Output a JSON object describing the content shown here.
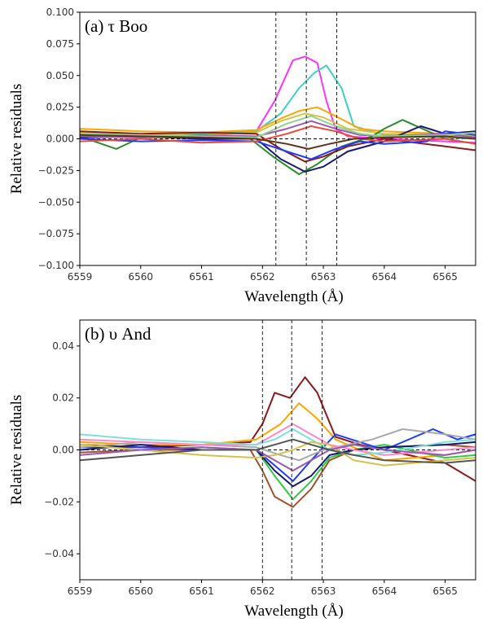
{
  "chart_data": [
    {
      "type": "line",
      "title": "(a) τ Boo",
      "xlabel": "Wavelength (Å)",
      "ylabel": "Relative residuals",
      "xlim": [
        6559,
        6565.5
      ],
      "ylim": [
        -0.1,
        0.1
      ],
      "xticks": [
        6559,
        6560,
        6561,
        6562,
        6563,
        6564,
        6565
      ],
      "xtick_labels": [
        "6559",
        "6560",
        "6561",
        "6562",
        "6563",
        "6564",
        "6565"
      ],
      "yticks": [
        0.1,
        0.075,
        0.05,
        0.025,
        0.0,
        -0.025,
        -0.05,
        -0.075,
        -0.1
      ],
      "ytick_labels": [
        "0.100",
        "0.075",
        "0.050",
        "0.025",
        "0.000",
        "−0.025",
        "−0.050",
        "−0.075",
        "−0.100"
      ],
      "vlines": [
        6562.22,
        6562.72,
        6563.22
      ],
      "hline": 0.0,
      "grid": false,
      "series": [
        {
          "color": "#ff33ff",
          "x": [
            6559,
            6560,
            6561,
            6561.9,
            6562.2,
            6562.5,
            6562.7,
            6562.9,
            6563.05,
            6563.2,
            6563.4,
            6564,
            6565,
            6565.5
          ],
          "y": [
            0.004,
            0.002,
            0.003,
            0.006,
            0.03,
            0.062,
            0.065,
            0.06,
            0.03,
            0.008,
            0.002,
            0.0,
            -0.002,
            -0.003
          ]
        },
        {
          "color": "#40d0c0",
          "x": [
            6559,
            6560,
            6561,
            6561.9,
            6562.3,
            6562.6,
            6562.85,
            6563.05,
            6563.3,
            6563.5,
            6564,
            6565,
            6565.5
          ],
          "y": [
            0.003,
            0.002,
            0.004,
            0.006,
            0.02,
            0.04,
            0.052,
            0.058,
            0.04,
            0.01,
            0.003,
            0.001,
            0.0
          ]
        },
        {
          "color": "#ffa500",
          "x": [
            6559,
            6560,
            6561,
            6561.9,
            6562.3,
            6562.6,
            6562.9,
            6563.2,
            6563.6,
            6564,
            6565,
            6565.5
          ],
          "y": [
            0.008,
            0.006,
            0.005,
            0.007,
            0.016,
            0.022,
            0.025,
            0.018,
            0.008,
            0.006,
            0.004,
            0.002
          ]
        },
        {
          "color": "#d4c24a",
          "x": [
            6559,
            6560,
            6561,
            6561.9,
            6562.3,
            6562.7,
            6563.0,
            6563.4,
            6564,
            6565,
            6565.5
          ],
          "y": [
            0.005,
            0.004,
            0.003,
            0.005,
            0.014,
            0.02,
            0.017,
            0.008,
            0.004,
            0.003,
            0.002
          ]
        },
        {
          "color": "#2e8b2e",
          "x": [
            6559,
            6559.6,
            6560,
            6561,
            6561.8,
            6562.2,
            6562.6,
            6562.9,
            6563.3,
            6563.8,
            6564,
            6564.3,
            6565,
            6565.5
          ],
          "y": [
            0.002,
            -0.008,
            0.001,
            0.002,
            0.0,
            -0.015,
            -0.028,
            -0.02,
            -0.006,
            0.002,
            0.008,
            0.015,
            0.0,
            -0.004
          ]
        },
        {
          "color": "#191970",
          "x": [
            6559,
            6560,
            6561,
            6561.9,
            6562.3,
            6562.7,
            6563.0,
            6563.4,
            6564,
            6564.6,
            6565,
            6565.5
          ],
          "y": [
            0.001,
            0.002,
            0.0,
            0.0,
            -0.016,
            -0.026,
            -0.022,
            -0.01,
            -0.002,
            0.01,
            0.004,
            0.006
          ]
        },
        {
          "color": "#8b1a1a",
          "x": [
            6559,
            6560,
            6561,
            6561.9,
            6562.3,
            6562.7,
            6563.0,
            6563.4,
            6564,
            6565,
            6565.5
          ],
          "y": [
            0.006,
            0.004,
            0.005,
            0.004,
            -0.008,
            -0.018,
            -0.014,
            -0.006,
            0.0,
            -0.006,
            -0.009
          ]
        },
        {
          "color": "#1e3cff",
          "x": [
            6559,
            6560,
            6561,
            6561.9,
            6562.4,
            6562.8,
            6563.2,
            6563.6,
            6564,
            6564.7,
            6565,
            6565.5
          ],
          "y": [
            0.0,
            -0.002,
            -0.001,
            -0.002,
            -0.01,
            -0.016,
            -0.008,
            -0.002,
            -0.004,
            -0.002,
            0.006,
            0.003
          ]
        },
        {
          "color": "#9b59b6",
          "x": [
            6559,
            6560,
            6561,
            6561.9,
            6562.4,
            6562.8,
            6563.2,
            6563.6,
            6564,
            6565,
            6565.5
          ],
          "y": [
            0.002,
            0.001,
            0.003,
            0.002,
            0.008,
            0.014,
            0.008,
            0.003,
            0.002,
            0.004,
            0.001
          ]
        },
        {
          "color": "#e74c3c",
          "x": [
            6559,
            6560,
            6561,
            6561.9,
            6562.4,
            6562.8,
            6563.2,
            6563.6,
            6564,
            6565,
            6565.5
          ],
          "y": [
            -0.002,
            0.0,
            -0.003,
            -0.002,
            0.004,
            0.01,
            0.006,
            0.0,
            -0.002,
            0.0,
            -0.004
          ]
        },
        {
          "color": "#8fd18f",
          "x": [
            6559,
            6560,
            6561,
            6561.9,
            6562.4,
            6562.8,
            6563.2,
            6563.6,
            6564,
            6565,
            6565.5
          ],
          "y": [
            0.004,
            0.003,
            0.002,
            0.001,
            0.012,
            0.018,
            0.01,
            0.004,
            0.002,
            0.003,
            0.005
          ]
        },
        {
          "color": "#5c3317",
          "x": [
            6559,
            6560,
            6561,
            6561.9,
            6562.4,
            6562.75,
            6563.1,
            6563.5,
            6564,
            6565,
            6565.5
          ],
          "y": [
            0.003,
            0.002,
            0.001,
            0.0,
            -0.004,
            -0.008,
            -0.004,
            0.0,
            0.001,
            0.002,
            0.0
          ]
        }
      ]
    },
    {
      "type": "line",
      "title": "(b) υ And",
      "xlabel": "Wavelength (Å)",
      "ylabel": "Relative residuals",
      "xlim": [
        6559,
        6565.5
      ],
      "ylim": [
        -0.05,
        0.05
      ],
      "xticks": [
        6559,
        6560,
        6561,
        6562,
        6563,
        6564,
        6565
      ],
      "xtick_labels": [
        "6559",
        "6560",
        "6561",
        "6562",
        "6563",
        "6564",
        "6565"
      ],
      "yticks": [
        0.04,
        0.02,
        0.0,
        -0.02,
        -0.04
      ],
      "ytick_labels": [
        "0.04",
        "0.02",
        "0.00",
        "−0.02",
        "−0.04"
      ],
      "vlines": [
        6562.0,
        6562.48,
        6562.98
      ],
      "hline": 0.0,
      "grid": false,
      "series": [
        {
          "color": "#8b1a1a",
          "x": [
            6559,
            6560,
            6561,
            6561.8,
            6562.0,
            6562.2,
            6562.45,
            6562.7,
            6562.9,
            6563.2,
            6563.6,
            6564,
            6565,
            6565.5
          ],
          "y": [
            0.002,
            0.001,
            0.002,
            0.003,
            0.01,
            0.022,
            0.02,
            0.028,
            0.022,
            0.005,
            0.002,
            0.0,
            -0.005,
            -0.012
          ]
        },
        {
          "color": "#a0522d",
          "x": [
            6559,
            6560,
            6561,
            6561.8,
            6562.0,
            6562.2,
            6562.5,
            6562.8,
            6563.1,
            6563.5,
            6564,
            6565,
            6565.5
          ],
          "y": [
            -0.001,
            0.0,
            0.0,
            0.0,
            -0.008,
            -0.018,
            -0.022,
            -0.015,
            -0.004,
            0.0,
            0.001,
            0.002,
            0.001
          ]
        },
        {
          "color": "#ffa500",
          "x": [
            6559,
            6560,
            6561,
            6561.9,
            6562.3,
            6562.6,
            6562.9,
            6563.2,
            6563.6,
            6564,
            6565,
            6565.5
          ],
          "y": [
            0.003,
            0.002,
            0.002,
            0.004,
            0.01,
            0.018,
            0.012,
            0.004,
            0.0,
            -0.004,
            -0.002,
            0.0
          ]
        },
        {
          "color": "#2ecc40",
          "x": [
            6559,
            6560,
            6561,
            6561.9,
            6562.2,
            6562.5,
            6562.8,
            6563.1,
            6563.5,
            6564,
            6565,
            6565.5
          ],
          "y": [
            0.002,
            0.0,
            0.001,
            0.0,
            -0.01,
            -0.019,
            -0.012,
            -0.003,
            0.0,
            0.002,
            -0.003,
            -0.002
          ]
        },
        {
          "color": "#1e3cff",
          "x": [
            6559,
            6560,
            6561,
            6561.9,
            6562.2,
            6562.5,
            6562.8,
            6563.2,
            6563.6,
            6564,
            6564.8,
            6565.2,
            6565.5
          ],
          "y": [
            0.001,
            0.001,
            0.0,
            0.0,
            -0.006,
            -0.012,
            -0.004,
            0.006,
            0.003,
            0.0,
            0.008,
            0.004,
            0.006
          ]
        },
        {
          "color": "#191970",
          "x": [
            6559,
            6560,
            6561,
            6561.9,
            6562.2,
            6562.5,
            6562.8,
            6563.1,
            6563.5,
            6564,
            6565,
            6565.5
          ],
          "y": [
            0.0,
            0.002,
            0.0,
            0.0,
            -0.008,
            -0.014,
            -0.01,
            -0.002,
            0.0,
            0.001,
            0.002,
            0.003
          ]
        },
        {
          "color": "#aaaaaa",
          "x": [
            6559,
            6560,
            6561,
            6561.9,
            6562.3,
            6562.6,
            6563.0,
            6563.4,
            6563.8,
            6564.3,
            6565,
            6565.5
          ],
          "y": [
            0.001,
            0.003,
            0.002,
            0.001,
            -0.002,
            -0.004,
            0.0,
            0.002,
            0.004,
            0.008,
            0.006,
            0.004
          ]
        },
        {
          "color": "#ff88cc",
          "x": [
            6559,
            6560,
            6561,
            6561.9,
            6562.2,
            6562.5,
            6562.8,
            6563.1,
            6563.5,
            6564,
            6565,
            6565.5
          ],
          "y": [
            0.004,
            0.003,
            0.002,
            0.002,
            0.006,
            0.01,
            0.006,
            0.002,
            0.0,
            -0.002,
            0.0,
            0.001
          ]
        },
        {
          "color": "#7fe0d8",
          "x": [
            6559,
            6560,
            6561,
            6561.9,
            6562.2,
            6562.5,
            6562.8,
            6563.1,
            6563.5,
            6564,
            6565,
            6565.5
          ],
          "y": [
            0.006,
            0.004,
            0.003,
            0.002,
            0.004,
            0.008,
            0.004,
            0.0,
            -0.002,
            -0.001,
            0.003,
            0.004
          ]
        },
        {
          "color": "#d4c24a",
          "x": [
            6559,
            6560,
            6561,
            6561.9,
            6562.2,
            6562.5,
            6562.8,
            6563.1,
            6563.5,
            6564,
            6565,
            6565.5
          ],
          "y": [
            0.002,
            0.0,
            -0.002,
            -0.003,
            -0.002,
            0.0,
            0.003,
            0.002,
            -0.004,
            -0.006,
            -0.004,
            -0.003
          ]
        },
        {
          "color": "#9b59b6",
          "x": [
            6559,
            6560,
            6561,
            6561.9,
            6562.2,
            6562.5,
            6562.8,
            6563.1,
            6563.5,
            6564,
            6565,
            6565.5
          ],
          "y": [
            -0.002,
            0.0,
            0.001,
            0.0,
            -0.004,
            -0.008,
            -0.004,
            0.0,
            0.002,
            0.0,
            -0.002,
            0.0
          ]
        },
        {
          "color": "#555555",
          "x": [
            6559,
            6560,
            6561,
            6561.9,
            6562.2,
            6562.5,
            6562.8,
            6563.1,
            6563.5,
            6564,
            6565,
            6565.5
          ],
          "y": [
            -0.004,
            -0.002,
            0.0,
            0.0,
            0.002,
            0.004,
            0.002,
            0.0,
            -0.002,
            -0.004,
            -0.005,
            -0.004
          ]
        }
      ]
    }
  ]
}
